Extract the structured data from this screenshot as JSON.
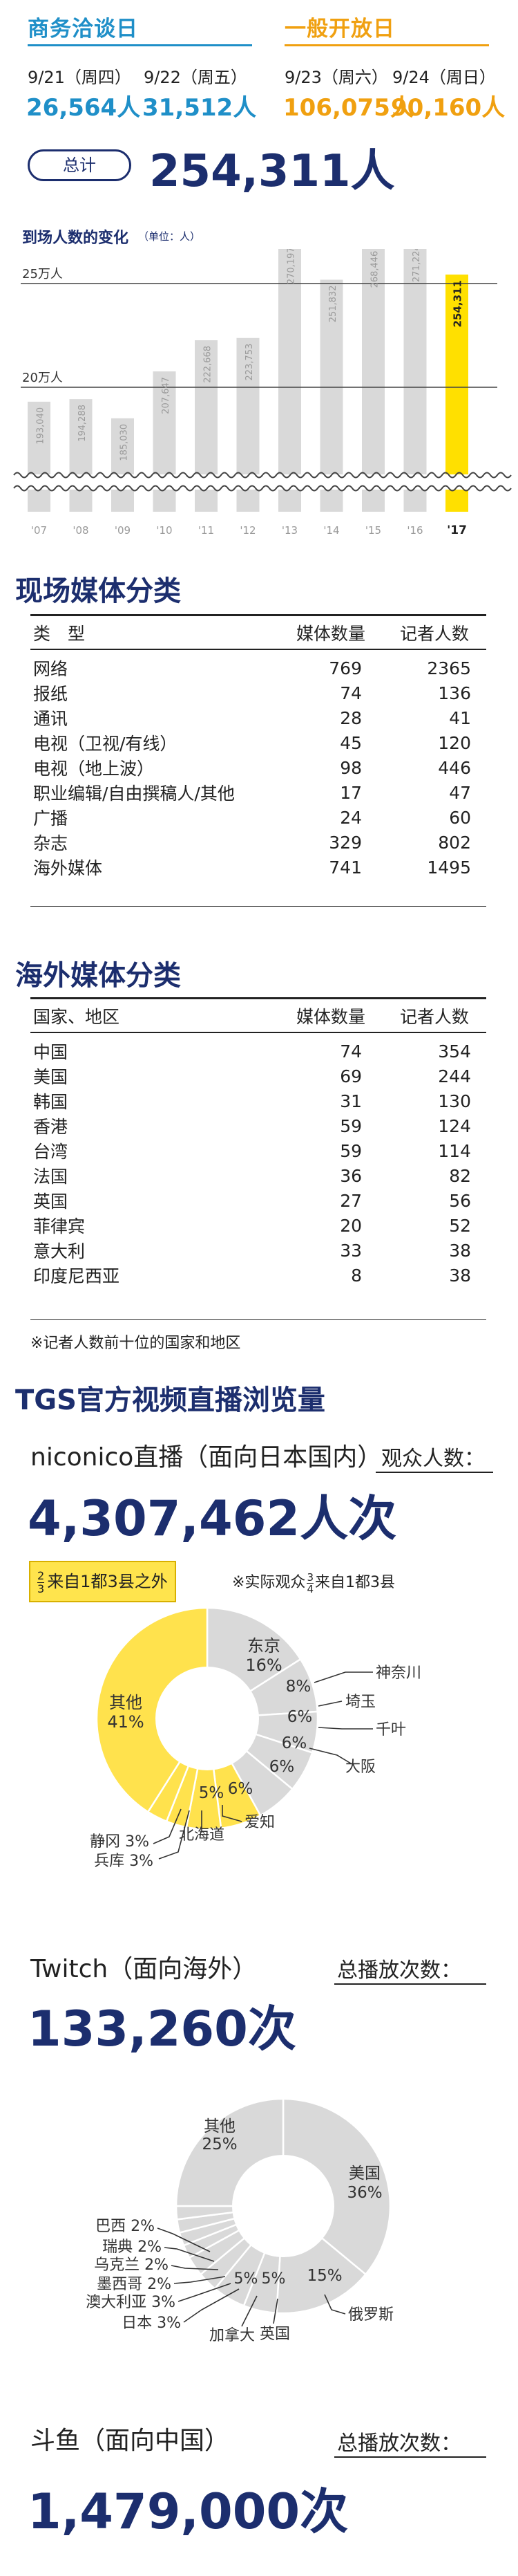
{
  "days": {
    "business": {
      "heading": "商务洽谈日",
      "days": [
        {
          "date": "9/21（周四）",
          "count": "26,564人"
        },
        {
          "date": "9/22（周五）",
          "count": "31,512人"
        }
      ]
    },
    "public": {
      "heading": "一般开放日",
      "days": [
        {
          "date": "9/23（周六）",
          "count": "106,075人"
        },
        {
          "date": "9/24（周日）",
          "count": "90,160人"
        }
      ]
    }
  },
  "total": {
    "label": "总计",
    "value": "254,311人"
  },
  "attendance_chart": {
    "title": "到场人数的变化",
    "unit_note": "（单位：人）",
    "ref_label_high": "25万人",
    "ref_label_low": "20万人",
    "colors": {
      "bar": "#d9d9d9",
      "highlight": "#ffe000",
      "label": "#9a9a9a"
    }
  },
  "chart_data": [
    {
      "type": "bar",
      "title": "到场人数的变化",
      "unit": "人",
      "categories": [
        "'07",
        "'08",
        "'09",
        "'10",
        "'11",
        "'12",
        "'13",
        "'14",
        "'15",
        "'16",
        "'17"
      ],
      "values": [
        193040,
        194288,
        185030,
        207647,
        222668,
        223753,
        270197,
        251832,
        268446,
        271224,
        254311
      ],
      "value_labels": [
        "193,040",
        "194,288",
        "185,030",
        "207,647",
        "222,668",
        "223,753",
        "270,197",
        "251,832",
        "268,446",
        "271,224",
        "254,311"
      ],
      "reference_lines": [
        {
          "label": "20万人",
          "value": 200000
        },
        {
          "label": "25万人",
          "value": 250000
        }
      ],
      "axis_break": true,
      "highlight_category": "'17"
    },
    {
      "type": "pie",
      "title": "niconico直播（面向日本国内）",
      "slices": [
        {
          "label": "东京",
          "value": 16
        },
        {
          "label": "神奈川",
          "value": 8
        },
        {
          "label": "埼玉",
          "value": 6
        },
        {
          "label": "千叶",
          "value": 6
        },
        {
          "label": "大阪",
          "value": 6
        },
        {
          "label": "爱知",
          "value": 6
        },
        {
          "label": "北海道",
          "value": 5
        },
        {
          "label": "兵库",
          "value": 3
        },
        {
          "label": "静冈",
          "value": 3
        },
        {
          "label": "其他",
          "value": 41
        }
      ],
      "highlight": [
        "爱知",
        "北海道",
        "兵库",
        "静冈",
        "其他"
      ]
    },
    {
      "type": "pie",
      "title": "Twitch（面向海外）",
      "slices": [
        {
          "label": "美国",
          "value": 36
        },
        {
          "label": "俄罗斯",
          "value": 15
        },
        {
          "label": "英国",
          "value": 5
        },
        {
          "label": "加拿大",
          "value": 5
        },
        {
          "label": "日本",
          "value": 3
        },
        {
          "label": "澳大利亚",
          "value": 3
        },
        {
          "label": "墨西哥",
          "value": 2
        },
        {
          "label": "乌克兰",
          "value": 2
        },
        {
          "label": "瑞典",
          "value": 2
        },
        {
          "label": "巴西",
          "value": 2
        },
        {
          "label": "其他",
          "value": 25
        }
      ]
    }
  ],
  "onsite_media": {
    "title": "现场媒体分类",
    "headers": [
      "类　型",
      "媒体数量",
      "记者人数"
    ],
    "rows": [
      [
        "网络",
        "769",
        "2365"
      ],
      [
        "报纸",
        "74",
        "136"
      ],
      [
        "通讯",
        "28",
        "41"
      ],
      [
        "电视（卫视/有线）",
        "45",
        "120"
      ],
      [
        "电视（地上波）",
        "98",
        "446"
      ],
      [
        "职业编辑/自由撰稿人/其他",
        "17",
        "47"
      ],
      [
        "广播",
        "24",
        "60"
      ],
      [
        "杂志",
        "329",
        "802"
      ],
      [
        "海外媒体",
        "741",
        "1495"
      ]
    ]
  },
  "overseas_media": {
    "title": "海外媒体分类",
    "headers": [
      "国家、地区",
      "媒体数量",
      "记者人数"
    ],
    "rows": [
      [
        "中国",
        "74",
        "354"
      ],
      [
        "美国",
        "69",
        "244"
      ],
      [
        "韩国",
        "31",
        "130"
      ],
      [
        "香港",
        "59",
        "124"
      ],
      [
        "台湾",
        "59",
        "114"
      ],
      [
        "法国",
        "36",
        "82"
      ],
      [
        "英国",
        "27",
        "56"
      ],
      [
        "菲律宾",
        "20",
        "52"
      ],
      [
        "意大利",
        "33",
        "38"
      ],
      [
        "印度尼西亚",
        "8",
        "38"
      ]
    ],
    "note": "※记者人数前十位的国家和地区"
  },
  "streaming": {
    "title": "TGS官方视频直播浏览量",
    "niconico": {
      "title": "niconico直播（面向日本国内）",
      "metric_label": "观众人数：",
      "value": "4,307,462人次",
      "callout_frac_num": "2",
      "callout_frac_den": "3",
      "callout_text": "来自1都3县之外",
      "note_prefix": "※实际观众",
      "note_frac_num": "3",
      "note_frac_den": "4",
      "note_suffix": "来自1都3县",
      "labels": {
        "tokyo": "东京",
        "tokyo_pct": "16%",
        "kanagawa": "神奈川",
        "kanagawa_pct": "8%",
        "saitama": "埼玉",
        "saitama_pct": "6%",
        "chiba": "千叶",
        "chiba_pct": "6%",
        "osaka": "大阪",
        "osaka_pct": "6%",
        "aichi": "爱知",
        "aichi_pct": "6%",
        "hokkaido": "北海道",
        "hokkaido_pct": "5%",
        "hyogo": "兵库 3%",
        "shizuoka": "静冈 3%",
        "other": "其他",
        "other_pct": "41%"
      },
      "colors": {
        "yellow": "#ffe24d",
        "grey": "#d9d9d9"
      }
    },
    "twitch": {
      "title": "Twitch（面向海外）",
      "metric_label": "总播放次数：",
      "value": "133,260次",
      "labels": {
        "usa": "美国",
        "usa_pct": "36%",
        "russia": "俄罗斯",
        "russia_pct": "15%",
        "uk": "英国",
        "uk_pct": "5%",
        "canada": "加拿大",
        "canada_pct": "5%",
        "japan": "日本 3%",
        "australia": "澳大利亚 3%",
        "mexico": "墨西哥 2%",
        "ukraine": "乌克兰 2%",
        "sweden": "瑞典 2%",
        "brazil": "巴西 2%",
        "other": "其他",
        "other_pct": "25%"
      }
    },
    "douyu": {
      "title": "斗鱼（面向中国）",
      "metric_label": "总播放次数：",
      "value": "1,479,000次"
    }
  }
}
